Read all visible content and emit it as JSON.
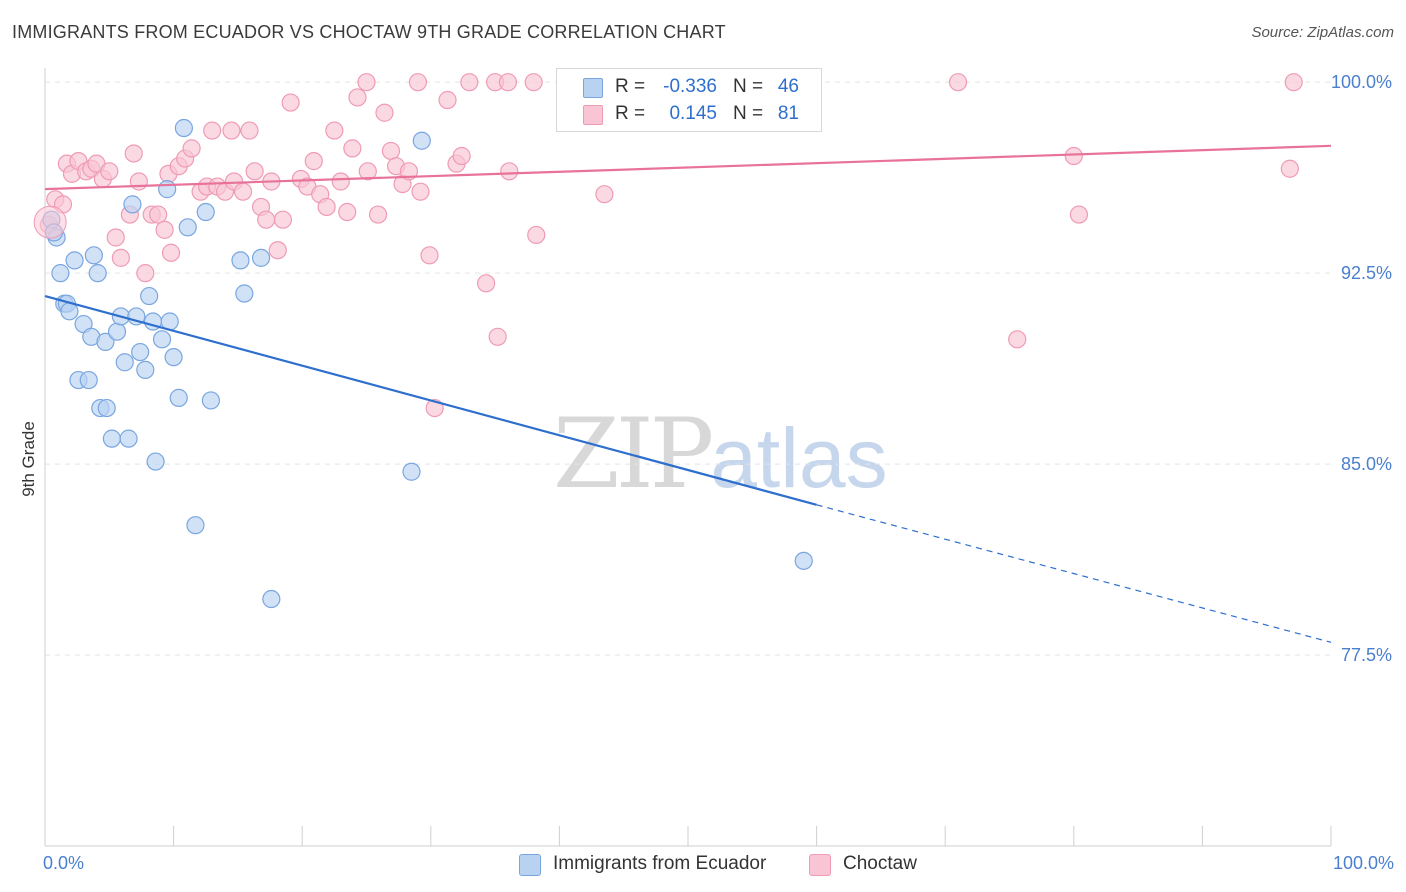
{
  "header": {
    "title": "IMMIGRANTS FROM ECUADOR VS CHOCTAW 9TH GRADE CORRELATION CHART",
    "source": "Source: ZipAtlas.com"
  },
  "watermark": {
    "zip": "ZIP",
    "atlas": "atlas"
  },
  "legend": {
    "rows": [
      {
        "r_label": "R =",
        "r_value": "-0.336",
        "n_label": "N =",
        "n_value": "46"
      },
      {
        "r_label": "R =",
        "r_value": "0.145",
        "n_label": "N =",
        "n_value": "81"
      }
    ]
  },
  "bottom_legend": [
    "Immigrants from Ecuador",
    "Choctaw"
  ],
  "colors": {
    "ecuador_fill": "#b9d2f2",
    "ecuador_stroke": "#7aa6e0",
    "ecuador_line": "#2e6fce",
    "choctaw_fill": "#f9c4d4",
    "choctaw_stroke": "#ef9bb5",
    "choctaw_line": "#e8729a",
    "grid": "#e3e3e3",
    "tick_label": "#4a7fcf"
  },
  "chart_data": {
    "type": "scatter",
    "title": "IMMIGRANTS FROM ECUADOR VS CHOCTAW 9TH GRADE CORRELATION CHART",
    "xlabel": "",
    "ylabel": "9th Grade",
    "xlim": [
      0,
      100
    ],
    "ylim": [
      70.0,
      100.4
    ],
    "x_tick_labels": [
      "0.0%",
      "100.0%"
    ],
    "y_ticks": [
      77.5,
      85.0,
      92.5,
      100.0
    ],
    "y_tick_labels": [
      "77.5%",
      "85.0%",
      "92.5%",
      "100.0%"
    ],
    "grid": true,
    "legend_position": "bottom",
    "series": [
      {
        "name": "Immigrants from Ecuador",
        "R": -0.336,
        "N": 46,
        "trend": {
          "x": [
            0,
            60
          ],
          "y": [
            91.6,
            83.4
          ],
          "dashed_to": [
            100,
            78.0
          ]
        },
        "points": [
          [
            0.5,
            94.6
          ],
          [
            0.9,
            93.9
          ],
          [
            0.7,
            94.1
          ],
          [
            1.2,
            92.5
          ],
          [
            1.5,
            91.3
          ],
          [
            1.7,
            91.3
          ],
          [
            1.9,
            91.0
          ],
          [
            2.3,
            93.0
          ],
          [
            2.6,
            88.3
          ],
          [
            3.0,
            90.5
          ],
          [
            3.4,
            88.3
          ],
          [
            3.6,
            90.0
          ],
          [
            3.8,
            93.2
          ],
          [
            4.1,
            92.5
          ],
          [
            4.3,
            87.2
          ],
          [
            4.7,
            89.8
          ],
          [
            4.8,
            87.2
          ],
          [
            5.2,
            86.0
          ],
          [
            5.6,
            90.2
          ],
          [
            5.9,
            90.8
          ],
          [
            6.2,
            89.0
          ],
          [
            6.5,
            86.0
          ],
          [
            6.8,
            95.2
          ],
          [
            7.1,
            90.8
          ],
          [
            7.4,
            89.4
          ],
          [
            7.8,
            88.7
          ],
          [
            8.1,
            91.6
          ],
          [
            8.4,
            90.6
          ],
          [
            8.6,
            85.1
          ],
          [
            9.1,
            89.9
          ],
          [
            9.5,
            95.8
          ],
          [
            9.7,
            90.6
          ],
          [
            10.0,
            89.2
          ],
          [
            10.4,
            87.6
          ],
          [
            10.8,
            98.2
          ],
          [
            11.1,
            94.3
          ],
          [
            11.7,
            82.6
          ],
          [
            12.5,
            94.9
          ],
          [
            12.9,
            87.5
          ],
          [
            15.2,
            93.0
          ],
          [
            15.5,
            91.7
          ],
          [
            16.8,
            93.1
          ],
          [
            17.6,
            79.7
          ],
          [
            29.3,
            97.7
          ],
          [
            28.5,
            84.7
          ],
          [
            59.0,
            81.2
          ]
        ]
      },
      {
        "name": "Choctaw",
        "R": 0.145,
        "N": 81,
        "trend": {
          "x": [
            0,
            100
          ],
          "y": [
            95.8,
            97.5
          ]
        },
        "points": [
          [
            0.3,
            94.4
          ],
          [
            0.8,
            95.4
          ],
          [
            1.4,
            95.2
          ],
          [
            1.7,
            96.8
          ],
          [
            2.1,
            96.4
          ],
          [
            2.6,
            96.9
          ],
          [
            3.2,
            96.5
          ],
          [
            3.6,
            96.6
          ],
          [
            4.0,
            96.8
          ],
          [
            4.5,
            96.2
          ],
          [
            5.0,
            96.5
          ],
          [
            5.5,
            93.9
          ],
          [
            5.9,
            93.1
          ],
          [
            6.6,
            94.8
          ],
          [
            6.9,
            97.2
          ],
          [
            7.3,
            96.1
          ],
          [
            7.8,
            92.5
          ],
          [
            8.3,
            94.8
          ],
          [
            8.8,
            94.8
          ],
          [
            9.3,
            94.2
          ],
          [
            9.6,
            96.4
          ],
          [
            9.8,
            93.3
          ],
          [
            10.4,
            96.7
          ],
          [
            10.9,
            97.0
          ],
          [
            11.4,
            97.4
          ],
          [
            12.1,
            95.7
          ],
          [
            12.6,
            95.9
          ],
          [
            13.0,
            98.1
          ],
          [
            13.4,
            95.9
          ],
          [
            14.0,
            95.7
          ],
          [
            14.5,
            98.1
          ],
          [
            14.7,
            96.1
          ],
          [
            15.4,
            95.7
          ],
          [
            15.9,
            98.1
          ],
          [
            16.3,
            96.5
          ],
          [
            16.8,
            95.1
          ],
          [
            17.2,
            94.6
          ],
          [
            17.6,
            96.1
          ],
          [
            18.1,
            93.4
          ],
          [
            18.5,
            94.6
          ],
          [
            19.1,
            99.2
          ],
          [
            19.9,
            96.2
          ],
          [
            20.4,
            95.9
          ],
          [
            20.9,
            96.9
          ],
          [
            21.4,
            95.6
          ],
          [
            21.9,
            95.1
          ],
          [
            22.5,
            98.1
          ],
          [
            23.0,
            96.1
          ],
          [
            23.5,
            94.9
          ],
          [
            23.9,
            97.4
          ],
          [
            24.3,
            99.4
          ],
          [
            25.1,
            96.5
          ],
          [
            25.9,
            94.8
          ],
          [
            26.4,
            98.8
          ],
          [
            26.9,
            97.3
          ],
          [
            27.3,
            96.7
          ],
          [
            27.8,
            96.0
          ],
          [
            28.3,
            96.5
          ],
          [
            29.2,
            95.7
          ],
          [
            29.9,
            93.2
          ],
          [
            30.3,
            87.2
          ],
          [
            31.3,
            99.3
          ],
          [
            32.0,
            96.8
          ],
          [
            32.4,
            97.1
          ],
          [
            34.3,
            92.1
          ],
          [
            35.2,
            90.0
          ],
          [
            36.1,
            96.5
          ],
          [
            38.2,
            94.0
          ],
          [
            43.5,
            95.6
          ],
          [
            25.0,
            100.0
          ],
          [
            29.0,
            100.0
          ],
          [
            33.0,
            100.0
          ],
          [
            35.0,
            100.0
          ],
          [
            36.0,
            100.0
          ],
          [
            38.0,
            100.0
          ],
          [
            45.0,
            100.0
          ],
          [
            71.0,
            100.0
          ],
          [
            75.6,
            89.9
          ],
          [
            80.4,
            94.8
          ],
          [
            80.0,
            97.1
          ],
          [
            96.8,
            96.6
          ],
          [
            97.1,
            100.0
          ]
        ]
      }
    ]
  }
}
